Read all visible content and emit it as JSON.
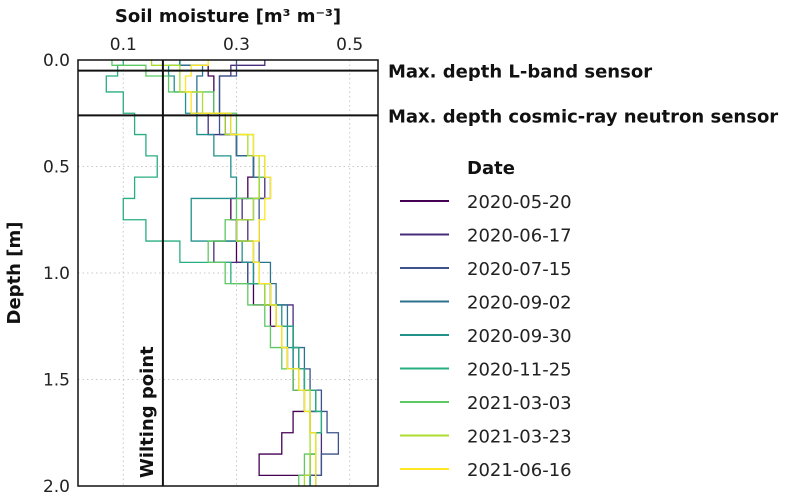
{
  "chart_data": {
    "type": "line",
    "orientation": "vertical-profile",
    "xlabel": "Soil moisture [m³ m⁻³]",
    "ylabel": "Depth [m]",
    "xlim": [
      0.02,
      0.55
    ],
    "ylim": [
      0.0,
      2.0
    ],
    "y_inverted": true,
    "x_axis_position": "top",
    "grid": true,
    "xticks": [
      0.1,
      0.3,
      0.5
    ],
    "xtick_labels": [
      "0.1",
      "0.3",
      "0.5"
    ],
    "yticks": [
      0.0,
      0.5,
      1.0,
      1.5,
      2.0
    ],
    "ytick_labels": [
      "0.0",
      "0.5",
      "1.0",
      "1.5",
      "2.0"
    ],
    "legend": {
      "title": "Date",
      "placement": "right"
    },
    "reference_lines": [
      {
        "orientation": "horizontal",
        "value": 0.05,
        "label": "Max. depth L-band sensor"
      },
      {
        "orientation": "horizontal",
        "value": 0.26,
        "label": "Max. depth cosmic-ray neutron sensor"
      },
      {
        "orientation": "vertical",
        "value": 0.17,
        "label": "Wilting point"
      }
    ],
    "depth": [
      0.0,
      0.05,
      0.1,
      0.2,
      0.3,
      0.4,
      0.5,
      0.6,
      0.7,
      0.8,
      0.9,
      1.0,
      1.1,
      1.2,
      1.3,
      1.4,
      1.5,
      1.6,
      1.7,
      1.8,
      1.9,
      2.0
    ],
    "series": [
      {
        "name": "2020-05-20",
        "color": "#440154",
        "values": [
          0.2,
          0.25,
          0.26,
          0.26,
          0.28,
          0.3,
          0.33,
          0.32,
          0.29,
          0.3,
          0.3,
          0.32,
          0.33,
          0.36,
          0.38,
          0.39,
          0.4,
          0.42,
          0.4,
          0.38,
          0.34,
          0.44
        ]
      },
      {
        "name": "2020-06-17",
        "color": "#472d7b",
        "values": [
          0.35,
          0.29,
          0.27,
          0.27,
          0.25,
          0.3,
          0.33,
          0.35,
          0.31,
          0.32,
          0.26,
          0.33,
          0.36,
          0.4,
          0.4,
          0.41,
          0.42,
          0.44,
          0.43,
          0.45,
          0.45,
          0.43
        ]
      },
      {
        "name": "2020-07-15",
        "color": "#3b528b",
        "values": [
          0.3,
          0.3,
          0.27,
          0.27,
          0.27,
          0.3,
          0.33,
          0.36,
          0.34,
          0.34,
          0.34,
          0.32,
          0.35,
          0.37,
          0.4,
          0.4,
          0.43,
          0.45,
          0.46,
          0.48,
          0.45,
          0.43
        ]
      },
      {
        "name": "2020-09-02",
        "color": "#2c728e",
        "values": [
          0.2,
          0.24,
          0.23,
          0.23,
          0.29,
          0.3,
          0.33,
          0.34,
          0.33,
          0.3,
          0.33,
          0.36,
          0.37,
          0.39,
          0.4,
          0.42,
          0.42,
          0.44,
          0.43,
          0.44,
          0.44,
          0.44
        ]
      },
      {
        "name": "2020-09-30",
        "color": "#21918c",
        "values": [
          0.2,
          0.18,
          0.19,
          0.21,
          0.23,
          0.26,
          0.29,
          0.3,
          0.22,
          0.22,
          0.31,
          0.33,
          0.36,
          0.38,
          0.39,
          0.4,
          0.41,
          0.44,
          0.45,
          0.44,
          0.43,
          0.43
        ]
      },
      {
        "name": "2020-11-25",
        "color": "#28ae80",
        "values": [
          0.1,
          0.09,
          0.07,
          0.1,
          0.12,
          0.14,
          0.16,
          0.12,
          0.1,
          0.14,
          0.2,
          0.29,
          0.35,
          0.37,
          0.4,
          0.41,
          0.42,
          0.44,
          0.45,
          0.44,
          0.43,
          0.43
        ]
      },
      {
        "name": "2021-03-03",
        "color": "#5ec962",
        "values": [
          0.08,
          0.14,
          0.18,
          0.26,
          0.3,
          0.33,
          0.35,
          0.34,
          0.3,
          0.28,
          0.25,
          0.28,
          0.32,
          0.35,
          0.36,
          0.38,
          0.4,
          0.42,
          0.43,
          0.44,
          0.42,
          0.41
        ]
      },
      {
        "name": "2021-03-23",
        "color": "#addc30",
        "values": [
          0.15,
          0.2,
          0.2,
          0.24,
          0.28,
          0.32,
          0.34,
          0.34,
          0.33,
          0.3,
          0.33,
          0.34,
          0.35,
          0.37,
          0.38,
          0.39,
          0.41,
          0.43,
          0.43,
          0.43,
          0.43,
          0.42
        ]
      },
      {
        "name": "2021-06-16",
        "color": "#fde725",
        "values": [
          0.25,
          0.22,
          0.21,
          0.22,
          0.29,
          0.33,
          0.35,
          0.36,
          0.35,
          0.34,
          0.33,
          0.34,
          0.36,
          0.37,
          0.38,
          0.39,
          0.41,
          0.42,
          0.43,
          0.44,
          0.44,
          0.44
        ]
      }
    ]
  }
}
